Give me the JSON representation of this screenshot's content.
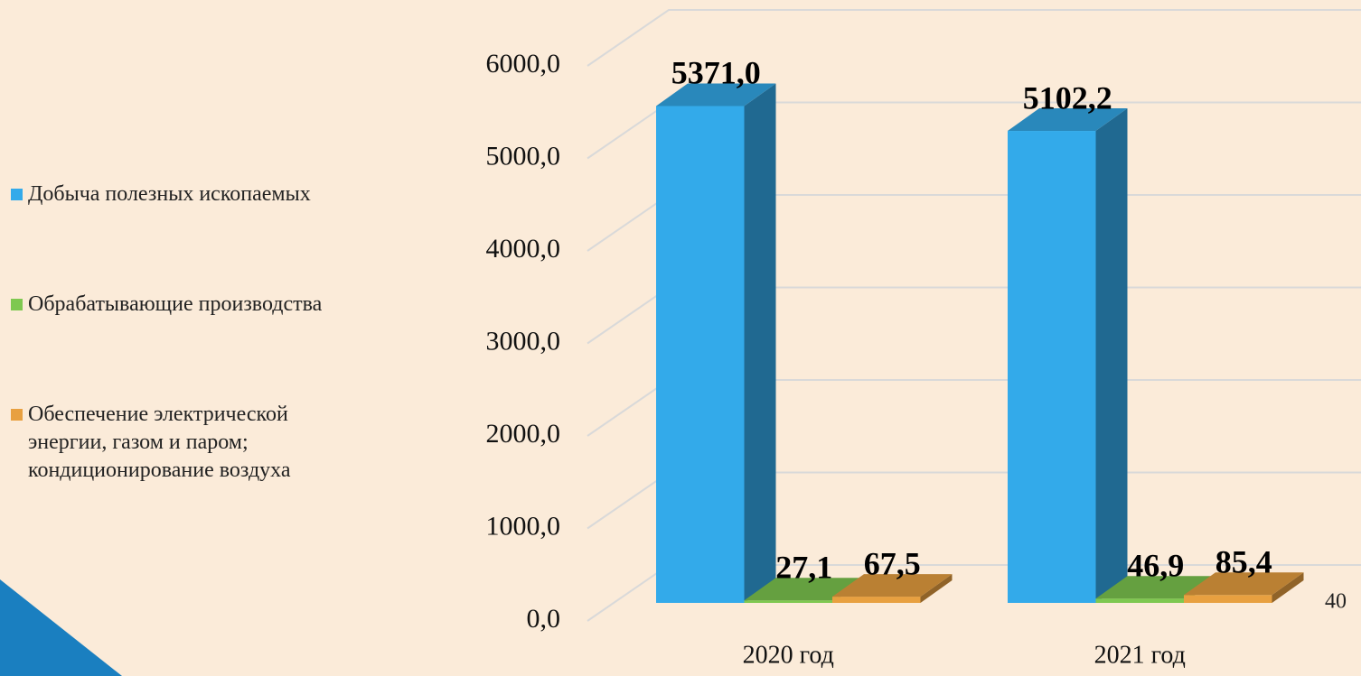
{
  "chart_data": {
    "type": "bar3d",
    "categories": [
      "2020 год",
      "2021 год"
    ],
    "series": [
      {
        "name": "Добыча полезных ископаемых",
        "color": "#33aaea",
        "values": [
          5371.0,
          5102.2
        ],
        "value_labels": [
          "5371,0",
          "5102,2"
        ]
      },
      {
        "name": "Обрабатывающие производства",
        "color": "#7ec850",
        "values": [
          27.1,
          46.9
        ],
        "value_labels": [
          "27,1",
          "46,9"
        ]
      },
      {
        "name": "Обеспечение электрической энергии, газом и паром; кондиционирование воздуха",
        "color": "#e8a040",
        "values": [
          67.5,
          85.4
        ],
        "value_labels": [
          "67,5",
          "85,4"
        ]
      }
    ],
    "ylim": [
      0,
      6000
    ],
    "yticks": [
      {
        "value": 0,
        "label": "0,0"
      },
      {
        "value": 1000,
        "label": "1000,0"
      },
      {
        "value": 2000,
        "label": "2000,0"
      },
      {
        "value": 3000,
        "label": "3000,0"
      },
      {
        "value": 4000,
        "label": "4000,0"
      },
      {
        "value": 5000,
        "label": "5000,0"
      },
      {
        "value": 6000,
        "label": "6000,0"
      }
    ],
    "grid": true,
    "legend": "left"
  },
  "page_number": "40"
}
